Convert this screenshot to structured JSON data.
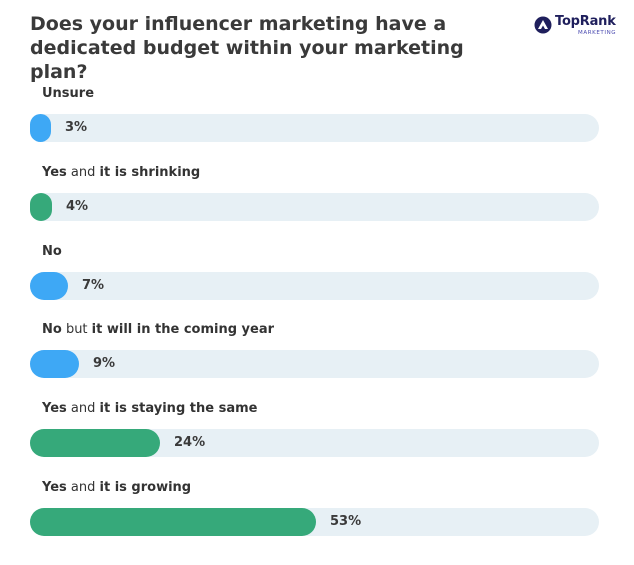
{
  "title": "Does your influencer marketing have a dedicated budget within your marketing plan?",
  "logo": {
    "name": "TopRank",
    "subtitle": "MARKETING"
  },
  "colors": {
    "blue": "#3ea8f5",
    "green": "#36a97a",
    "track": "#e7f0f5",
    "text": "#333333",
    "logo": "#1f1f5c"
  },
  "chart_data": {
    "type": "bar",
    "orientation": "horizontal",
    "title": "Does your influencer marketing have a dedicated budget within your marketing plan?",
    "unit": "%",
    "xlim": [
      0,
      100
    ],
    "grid": false,
    "categories": [
      "Unsure",
      "Yes and it is shrinking",
      "No",
      "No but it will in the coming year",
      "Yes and it is staying the same",
      "Yes and it is growing"
    ],
    "values": [
      3,
      4,
      7,
      9,
      24,
      53
    ],
    "value_labels": [
      "3%",
      "4%",
      "7%",
      "9%",
      "24%",
      "53%"
    ],
    "bar_colors": [
      "#3ea8f5",
      "#36a97a",
      "#3ea8f5",
      "#3ea8f5",
      "#36a97a",
      "#36a97a"
    ],
    "label_parts": [
      [
        {
          "text": "Unsure",
          "bold": true
        }
      ],
      [
        {
          "text": "Yes",
          "bold": true
        },
        {
          "text": " and ",
          "bold": false
        },
        {
          "text": "it is shrinking",
          "bold": true
        }
      ],
      [
        {
          "text": "No",
          "bold": true
        }
      ],
      [
        {
          "text": "No",
          "bold": true
        },
        {
          "text": " but ",
          "bold": false
        },
        {
          "text": "it will in the coming year",
          "bold": true
        }
      ],
      [
        {
          "text": "Yes",
          "bold": true
        },
        {
          "text": " and ",
          "bold": false
        },
        {
          "text": "it is staying the same",
          "bold": true
        }
      ],
      [
        {
          "text": "Yes",
          "bold": true
        },
        {
          "text": " and ",
          "bold": false
        },
        {
          "text": "it is growing",
          "bold": true
        }
      ]
    ]
  }
}
